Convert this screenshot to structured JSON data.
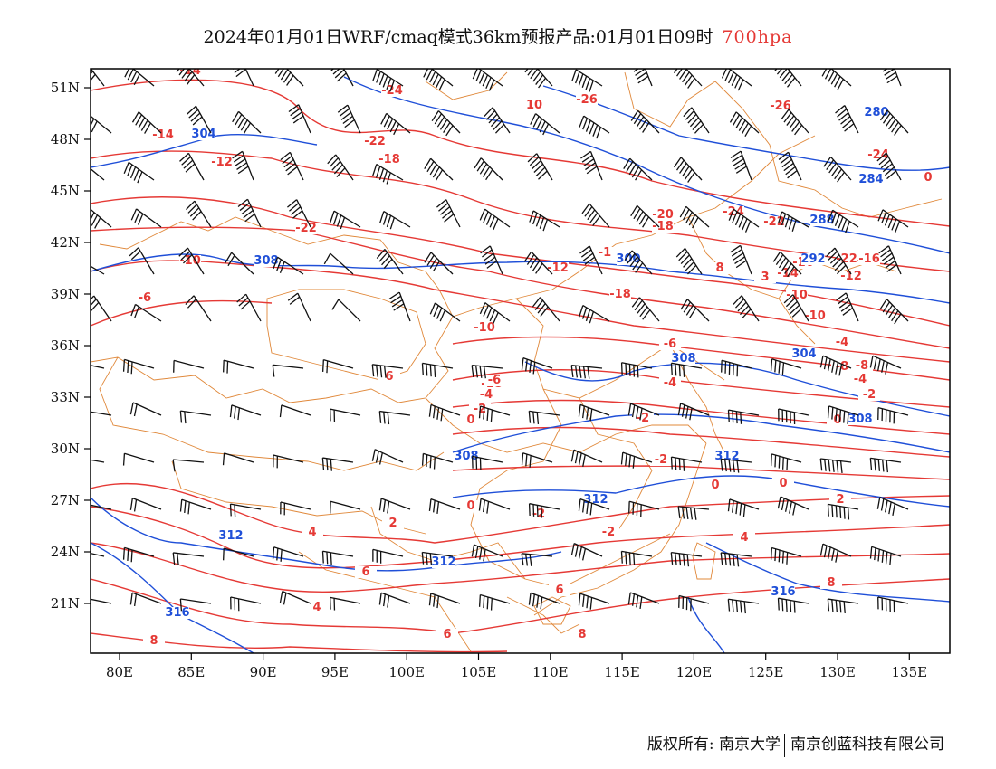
{
  "title": {
    "main": "2024年01月01日WRF/cmaq模式36km预报产品:01月01日09时",
    "level": "700hpa"
  },
  "colors": {
    "temperature": "#e53935",
    "height": "#1f4fd8",
    "border": "#e0883a",
    "wind": "#111111"
  },
  "axes": {
    "lat_labels": [
      "51N",
      "48N",
      "45N",
      "42N",
      "39N",
      "36N",
      "33N",
      "30N",
      "27N",
      "24N",
      "21N"
    ],
    "lon_labels": [
      "80E",
      "85E",
      "90E",
      "95E",
      "100E",
      "105E",
      "110E",
      "115E",
      "120E",
      "125E",
      "130E",
      "135E"
    ]
  },
  "temperature_labels": [
    "-14",
    "-14",
    "-24",
    "-26",
    "-26",
    "-22",
    "-18",
    "-12",
    "-20",
    "-24",
    "-22",
    "-18",
    "-22",
    "-10",
    "-12",
    "-1",
    "-14",
    "-16",
    "-10",
    "-6",
    "-10",
    "-18",
    "-12",
    "-10",
    "-18",
    "-4",
    "-6",
    "-6",
    "-4",
    "-4",
    "-8",
    "-8",
    "-2",
    "-4",
    "-2",
    "-2",
    "0",
    "-2",
    "0",
    "0",
    "0",
    "-2",
    "2",
    "2",
    "4",
    "4",
    "-2",
    "6",
    "4",
    "6",
    "8",
    "8",
    "6",
    "8",
    "6",
    "8",
    "10",
    "0",
    "3",
    "-22",
    "-16",
    "0",
    "-24"
  ],
  "height_labels": [
    "304",
    "308",
    "288",
    "284",
    "280",
    "300",
    "292",
    "312",
    "308",
    "304",
    "308",
    "308",
    "312",
    "312",
    "312",
    "316",
    "316"
  ],
  "footer": {
    "left": "版权所有: 南京大学",
    "right": "南京创蓝科技有限公司"
  },
  "icons": [
    "wind-barb-icon"
  ]
}
